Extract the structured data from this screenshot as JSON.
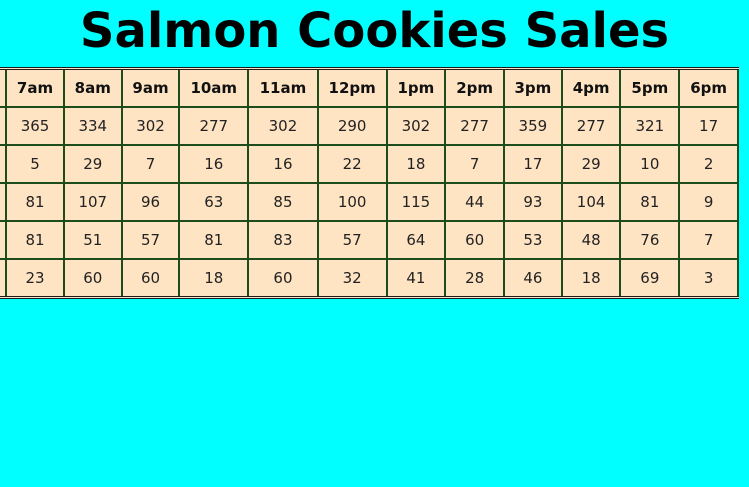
{
  "title": "Salmon Cookies Sales",
  "table": {
    "headers": [
      "",
      "7am",
      "8am",
      "9am",
      "10am",
      "11am",
      "12pm",
      "1pm",
      "2pm",
      "3pm",
      "4pm",
      "5pm",
      "6pm"
    ],
    "rows": [
      [
        "",
        "365",
        "334",
        "302",
        "277",
        "302",
        "290",
        "302",
        "277",
        "359",
        "277",
        "321",
        "17"
      ],
      [
        "",
        "5",
        "29",
        "7",
        "16",
        "16",
        "22",
        "18",
        "7",
        "17",
        "29",
        "10",
        "2"
      ],
      [
        "",
        "81",
        "107",
        "96",
        "63",
        "85",
        "100",
        "115",
        "44",
        "93",
        "104",
        "81",
        "9"
      ],
      [
        "",
        "81",
        "51",
        "57",
        "81",
        "83",
        "57",
        "64",
        "60",
        "53",
        "48",
        "76",
        "7"
      ],
      [
        "",
        "23",
        "60",
        "60",
        "18",
        "60",
        "32",
        "41",
        "28",
        "46",
        "18",
        "69",
        "3"
      ]
    ]
  },
  "colors": {
    "background": "#00FFFF",
    "table_fill": "#FFE4C4",
    "cell_border": "#1a4d1a"
  }
}
